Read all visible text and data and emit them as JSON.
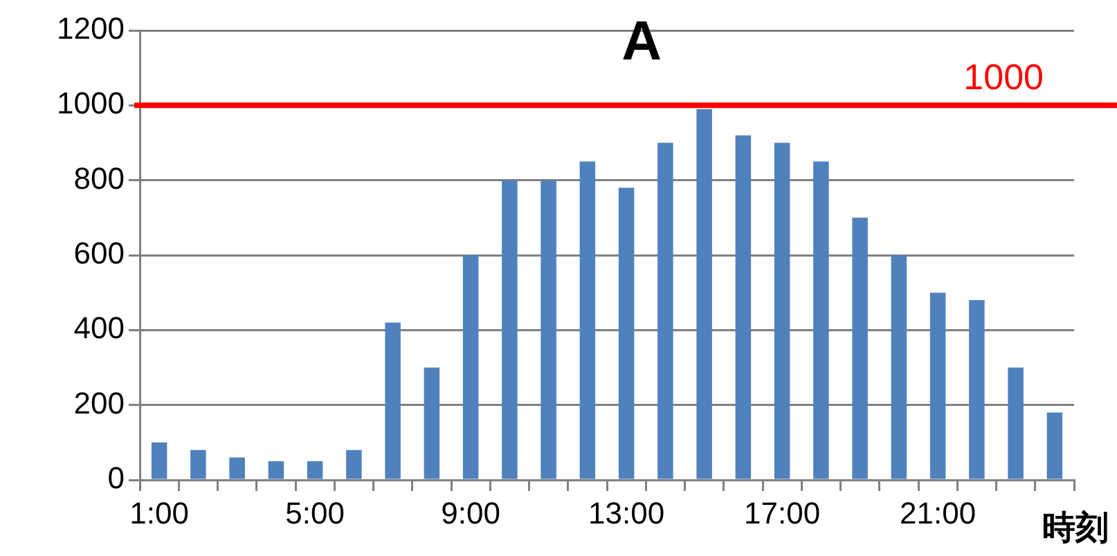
{
  "chart_data": {
    "type": "bar",
    "title": "A",
    "xlabel": "時刻",
    "categories": [
      "1:00",
      null,
      null,
      null,
      "5:00",
      null,
      null,
      null,
      "9:00",
      null,
      null,
      null,
      "13:00",
      null,
      null,
      null,
      "17:00",
      null,
      null,
      null,
      "21:00",
      null,
      null,
      null
    ],
    "values": [
      100,
      80,
      60,
      50,
      50,
      80,
      420,
      300,
      600,
      800,
      800,
      850,
      780,
      900,
      990,
      920,
      900,
      850,
      700,
      600,
      500,
      480,
      300,
      180
    ],
    "color": "#4f81bd",
    "ylim": [
      0,
      1200
    ],
    "yticks": [
      0,
      200,
      400,
      600,
      800,
      1000,
      1200
    ],
    "grid": "y",
    "ref_lines": [
      {
        "axis": "y",
        "value": 1000,
        "label": "1000",
        "color": "#ff0000"
      }
    ]
  }
}
